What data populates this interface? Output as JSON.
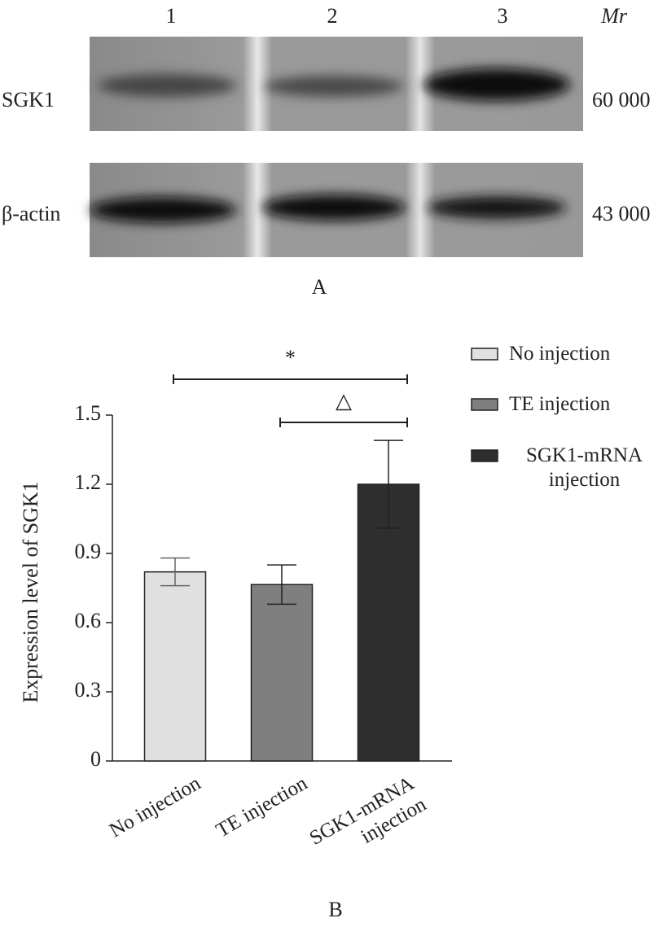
{
  "blot": {
    "lanes": [
      "1",
      "2",
      "3"
    ],
    "mr_header": "Mr",
    "rows": [
      {
        "label": "SGK1",
        "mr": "60 000"
      },
      {
        "label": "β-actin",
        "mr": "43 000"
      }
    ],
    "panel": "A"
  },
  "chart_data": {
    "type": "bar",
    "panel": "B",
    "ylabel": "Expression level of SGK1",
    "categories": [
      "No injection",
      "TE injection",
      "SGK1-mRNA injection"
    ],
    "values": [
      0.82,
      0.765,
      1.2
    ],
    "errors": [
      0.06,
      0.085,
      0.19
    ],
    "colors": [
      "#e0e0e0",
      "#7f7f7f",
      "#2e2e2e"
    ],
    "ylim": [
      0,
      1.5
    ],
    "yticks": [
      0,
      0.3,
      0.6,
      0.9,
      1.2,
      1.5
    ],
    "annotations": [
      {
        "text": "*",
        "from": 0,
        "to": 2
      },
      {
        "text": "△",
        "from": 1,
        "to": 2
      }
    ],
    "legend": "right"
  }
}
